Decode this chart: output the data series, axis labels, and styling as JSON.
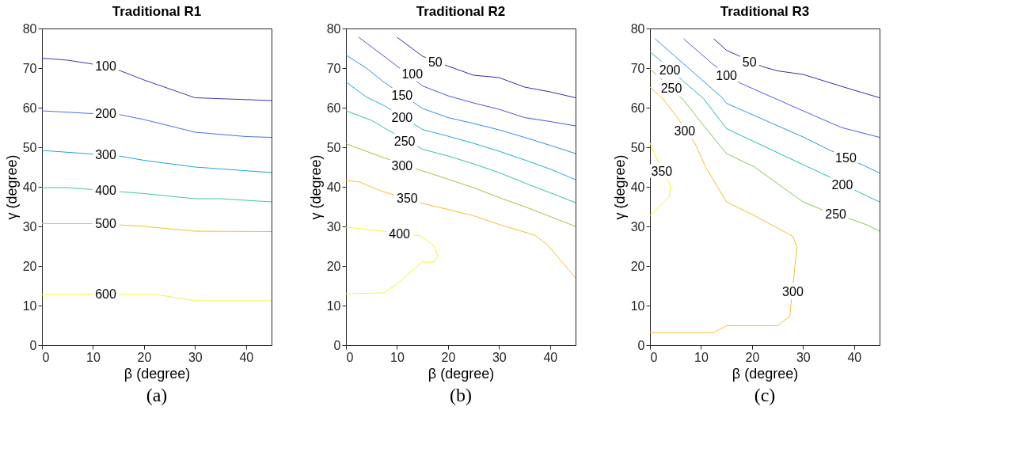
{
  "chart_data": [
    {
      "type": "line",
      "title": "Traditional R1",
      "xlabel": "β (degree)",
      "ylabel": "γ (degree)",
      "xlim": [
        0,
        45
      ],
      "xticks": [
        0,
        10,
        20,
        30,
        40
      ],
      "ylim": [
        0,
        80
      ],
      "yticks": [
        0,
        10,
        20,
        30,
        40,
        50,
        60,
        70,
        80
      ],
      "grid": false,
      "series": [
        {
          "color": "#4133b5",
          "x": [
            0,
            5,
            10,
            15,
            20,
            30,
            45
          ],
          "values": [
            72.5,
            72,
            71,
            69.5,
            67,
            62.5,
            61.8
          ]
        },
        {
          "color": "#4d6cf2",
          "x": [
            0,
            10,
            15,
            20,
            30,
            40,
            45
          ],
          "values": [
            59.2,
            58.5,
            58.3,
            57,
            53.8,
            52.7,
            52.5
          ]
        },
        {
          "color": "#1aa5dc",
          "x": [
            0,
            15,
            20,
            30,
            45
          ],
          "values": [
            49.2,
            47.8,
            46.7,
            45,
            43.6
          ]
        },
        {
          "color": "#3dcc8c",
          "x": [
            0,
            5,
            10,
            15,
            20,
            30,
            35,
            45
          ],
          "values": [
            39.8,
            39.8,
            39.3,
            38.8,
            38.3,
            37,
            37,
            36.2
          ]
        },
        {
          "color": "#f5b935",
          "x": [
            0,
            10,
            15,
            20,
            30,
            45
          ],
          "values": [
            30.7,
            30.7,
            30.4,
            30,
            28.8,
            28.7
          ]
        },
        {
          "color": "#f5f53b",
          "x": [
            0,
            22.5,
            30,
            45
          ],
          "values": [
            12.8,
            12.8,
            11.2,
            11.2
          ]
        }
      ],
      "annotations": [
        {
          "text": "100",
          "x": 12.5,
          "y": 70.5
        },
        {
          "text": "200",
          "x": 12.5,
          "y": 58.4
        },
        {
          "text": "300",
          "x": 12.5,
          "y": 48
        },
        {
          "text": "400",
          "x": 12.5,
          "y": 39
        },
        {
          "text": "500",
          "x": 12.5,
          "y": 30.6
        },
        {
          "text": "600",
          "x": 12.5,
          "y": 12.8
        },
        "(a)"
      ]
    },
    {
      "type": "line",
      "title": "Traditional R2",
      "xlabel": "β (degree)",
      "ylabel": "γ (degree)",
      "xlim": [
        0,
        45
      ],
      "xticks": [
        0,
        10,
        20,
        30,
        40
      ],
      "ylim": [
        0,
        80
      ],
      "yticks": [
        0,
        10,
        20,
        30,
        40,
        50,
        60,
        70,
        80
      ],
      "grid": false,
      "series": [
        {
          "color": "#3d26a8",
          "x": [
            10,
            15,
            20,
            25,
            30,
            35,
            40,
            45
          ],
          "values": [
            77.8,
            73,
            70.5,
            68.2,
            67.6,
            65.2,
            64,
            62.5
          ]
        },
        {
          "color": "#4a4ff0",
          "x": [
            2.5,
            9.5,
            15,
            20,
            25,
            30,
            35,
            40,
            45
          ],
          "values": [
            77.8,
            71,
            65.5,
            63,
            61.2,
            59.6,
            57.5,
            56.5,
            55.4
          ]
        },
        {
          "color": "#2d8cf0",
          "x": [
            0,
            4,
            7.5,
            15,
            20,
            25,
            30,
            35,
            40,
            45
          ],
          "values": [
            73.3,
            70,
            66.4,
            59.8,
            57.5,
            56,
            54.4,
            52.5,
            50.5,
            48.4
          ]
        },
        {
          "color": "#14b0d8",
          "x": [
            0,
            4,
            7.5,
            15,
            20,
            25,
            30,
            35,
            40,
            45
          ],
          "values": [
            66.5,
            62.7,
            60.5,
            54.5,
            52.8,
            51,
            49,
            46.8,
            44.5,
            41.8
          ]
        },
        {
          "color": "#2ec5a0",
          "x": [
            0,
            5,
            8,
            15,
            20,
            25,
            30,
            35,
            40,
            45
          ],
          "values": [
            59.2,
            56.8,
            54.5,
            49.5,
            47.8,
            45.8,
            43.6,
            41,
            38.5,
            36
          ]
        },
        {
          "color": "#a5c23a",
          "x": [
            0,
            7.5,
            15,
            17.5,
            25,
            30,
            35,
            40,
            45
          ],
          "values": [
            50.9,
            47.3,
            44,
            43,
            39.8,
            37.3,
            35,
            32.5,
            30
          ]
        },
        {
          "color": "#fbb933",
          "x": [
            0,
            2.5,
            7,
            15,
            20,
            25,
            30,
            37,
            39.5,
            45
          ],
          "values": [
            41.6,
            41.3,
            38.9,
            35.8,
            34.3,
            32.7,
            30.5,
            27.8,
            25.3,
            17
          ]
        },
        {
          "color": "#f9f81e",
          "x": [
            0,
            6,
            14.7,
            17.3,
            18,
            17.3,
            15,
            10,
            7.5,
            0
          ],
          "values": [
            29.8,
            29,
            27.6,
            25,
            22.5,
            21,
            21,
            15.5,
            13.2,
            13
          ]
        }
      ],
      "annotations": [
        {
          "text": "50",
          "x": 17.5,
          "y": 71.5
        },
        {
          "text": "100",
          "x": 13,
          "y": 68.5
        },
        {
          "text": "150",
          "x": 11,
          "y": 63
        },
        {
          "text": "200",
          "x": 11,
          "y": 57.5
        },
        {
          "text": "250",
          "x": 11.5,
          "y": 51.5
        },
        {
          "text": "300",
          "x": 11,
          "y": 45.3
        },
        {
          "text": "350",
          "x": 12,
          "y": 37
        },
        {
          "text": "400",
          "x": 10.5,
          "y": 28
        },
        "(b)"
      ]
    },
    {
      "type": "line",
      "title": "Traditional R3",
      "xlabel": "β (degree)",
      "ylabel": "γ (degree)",
      "xlim": [
        0,
        45
      ],
      "xticks": [
        0,
        10,
        20,
        30,
        40
      ],
      "ylim": [
        0,
        80
      ],
      "yticks": [
        0,
        10,
        20,
        30,
        40,
        50,
        60,
        70,
        80
      ],
      "grid": false,
      "series": [
        {
          "color": "#3d26a8",
          "x": [
            12.5,
            15,
            22,
            25,
            30,
            37.5,
            45
          ],
          "values": [
            77.4,
            74.5,
            70.4,
            69.3,
            68.4,
            65.4,
            62.5
          ]
        },
        {
          "color": "#4d5bf0",
          "x": [
            6.6,
            12.4,
            17.7,
            30,
            37.5,
            45
          ],
          "values": [
            77.4,
            70.9,
            66.2,
            59.2,
            55,
            52.5
          ]
        },
        {
          "color": "#2a95ea",
          "x": [
            1,
            14,
            15,
            30,
            35.5,
            41.4,
            45
          ],
          "values": [
            77.4,
            62.7,
            61.1,
            52.6,
            49.1,
            45.7,
            43.5
          ]
        },
        {
          "color": "#18bdb5",
          "x": [
            0,
            1.6,
            6.6,
            10.5,
            15,
            30,
            35.2,
            41,
            45
          ],
          "values": [
            74.1,
            72.4,
            66.6,
            62.3,
            54.7,
            45.6,
            42.5,
            38.6,
            36.2
          ]
        },
        {
          "color": "#84c750",
          "x": [
            0,
            2,
            6.6,
            10.2,
            15,
            20.5,
            30,
            33.4,
            39.5,
            42.5,
            45
          ],
          "values": [
            69.8,
            67.5,
            61.9,
            56,
            48.4,
            45,
            36.2,
            34.4,
            31.8,
            30.4,
            28.8
          ]
        },
        {
          "color": "#fbb933",
          "x": [
            0,
            2.5,
            5.2,
            8.9,
            10.9,
            15,
            20.5,
            28,
            28.8,
            28.2,
            27.4,
            25,
            15,
            12.5,
            0
          ],
          "values": [
            65.2,
            62.3,
            57.8,
            50.8,
            45,
            36.2,
            32.7,
            27.5,
            24.9,
            17.3,
            7.3,
            4.9,
            4.9,
            3.2,
            3.2
          ]
        },
        {
          "color": "#f9f81e",
          "x": [
            0,
            1.1,
            4.1,
            3.7,
            0
          ],
          "values": [
            51.1,
            47.7,
            40.1,
            37.4,
            32.8
          ]
        }
      ],
      "annotations": [
        {
          "text": "50",
          "x": 19.5,
          "y": 71.5
        },
        {
          "text": "100",
          "x": 15,
          "y": 68
        },
        {
          "text": "150",
          "x": 38.4,
          "y": 47.2
        },
        {
          "text": "200",
          "x": 3.9,
          "y": 69.5
        },
        {
          "text": "200",
          "x": 37.7,
          "y": 40.5
        },
        {
          "text": "250",
          "x": 4.2,
          "y": 64.8
        },
        {
          "text": "250",
          "x": 36.4,
          "y": 33
        },
        {
          "text": "300",
          "x": 6.8,
          "y": 54
        },
        {
          "text": "300",
          "x": 28,
          "y": 13.4
        },
        {
          "text": "350",
          "x": 2.3,
          "y": 43.8
        },
        "(c)"
      ]
    }
  ]
}
